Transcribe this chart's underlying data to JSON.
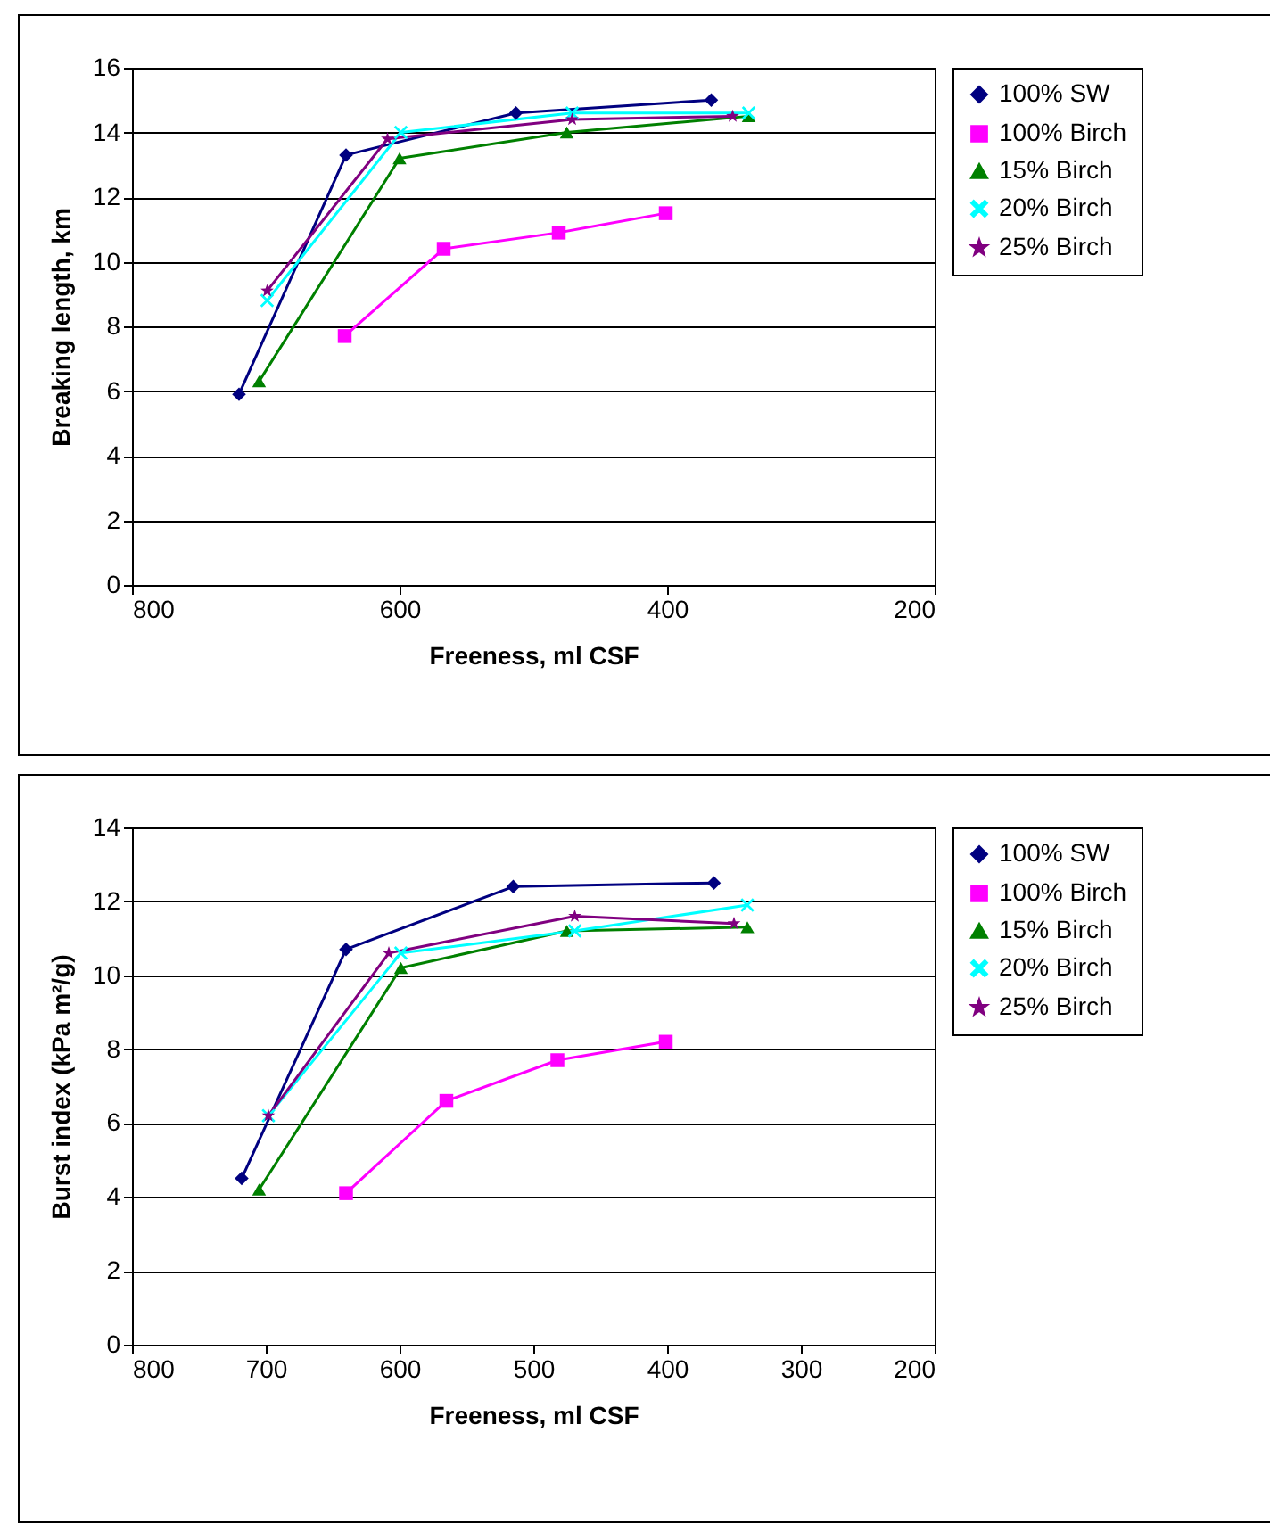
{
  "chart_data": [
    {
      "type": "line",
      "xlabel": "Freeness, ml CSF",
      "ylabel": "Breaking length, km",
      "xlim": [
        800,
        200
      ],
      "xticks": [
        800,
        600,
        400,
        200
      ],
      "ylim": [
        0,
        16
      ],
      "yticks": [
        0,
        2,
        4,
        6,
        8,
        10,
        12,
        14,
        16
      ],
      "grid": "y",
      "legend": "right",
      "series": [
        {
          "name": "100% SW",
          "color": "#000080",
          "marker": "diamond",
          "x": [
            720,
            640,
            513,
            367
          ],
          "values": [
            5.9,
            13.3,
            14.6,
            15.0
          ]
        },
        {
          "name": "100% Birch",
          "color": "#ff00ff",
          "marker": "square",
          "x": [
            641,
            567,
            481,
            401
          ],
          "values": [
            7.7,
            10.4,
            10.9,
            11.5
          ]
        },
        {
          "name": "15% Birch",
          "color": "#008000",
          "marker": "triangle",
          "x": [
            705,
            600,
            475,
            339
          ],
          "values": [
            6.3,
            13.2,
            14.0,
            14.5
          ]
        },
        {
          "name": "20% Birch",
          "color": "#00ffff",
          "marker": "cross",
          "x": [
            699,
            599,
            471,
            339
          ],
          "values": [
            8.8,
            14.0,
            14.6,
            14.6
          ]
        },
        {
          "name": "25% Birch",
          "color": "#800080",
          "marker": "star",
          "x": [
            699,
            609,
            471,
            351
          ],
          "values": [
            9.1,
            13.8,
            14.4,
            14.5
          ]
        }
      ]
    },
    {
      "type": "line",
      "xlabel": "Freeness, ml CSF",
      "ylabel": "Burst index (kPa m²/g)",
      "xlim": [
        800,
        200
      ],
      "xticks": [
        800,
        700,
        600,
        500,
        400,
        300,
        200
      ],
      "ylim": [
        0,
        14
      ],
      "yticks": [
        0,
        2,
        4,
        6,
        8,
        10,
        12,
        14
      ],
      "grid": "y",
      "legend": "right",
      "series": [
        {
          "name": "100% SW",
          "color": "#000080",
          "marker": "diamond",
          "x": [
            718,
            640,
            515,
            365
          ],
          "values": [
            4.5,
            10.7,
            12.4,
            12.5
          ]
        },
        {
          "name": "100% Birch",
          "color": "#ff00ff",
          "marker": "square",
          "x": [
            640,
            565,
            482,
            401
          ],
          "values": [
            4.1,
            6.6,
            7.7,
            8.2
          ]
        },
        {
          "name": "15% Birch",
          "color": "#008000",
          "marker": "triangle",
          "x": [
            705,
            599,
            475,
            340
          ],
          "values": [
            4.2,
            10.2,
            11.2,
            11.3
          ]
        },
        {
          "name": "20% Birch",
          "color": "#00ffff",
          "marker": "cross",
          "x": [
            698,
            599,
            469,
            340
          ],
          "values": [
            6.2,
            10.6,
            11.2,
            11.9
          ]
        },
        {
          "name": "25% Birch",
          "color": "#800080",
          "marker": "star",
          "x": [
            698,
            608,
            469,
            350
          ],
          "values": [
            6.2,
            10.6,
            11.6,
            11.4
          ]
        }
      ]
    }
  ]
}
